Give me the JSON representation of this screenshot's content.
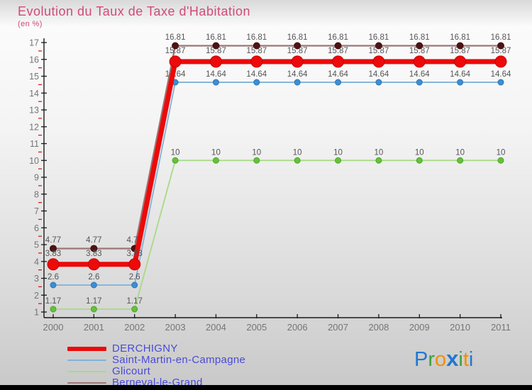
{
  "page": {
    "title": "Evolution du Taux de Taxe d'Habitation",
    "subtitle": "(en %)"
  },
  "chart_data": {
    "type": "line",
    "title": "Evolution du Taux de Taxe d'Habitation",
    "subtitle": "(en %)",
    "xlabel": "",
    "ylabel": "",
    "x": [
      2000,
      2001,
      2002,
      2003,
      2004,
      2005,
      2006,
      2007,
      2008,
      2009,
      2010,
      2011
    ],
    "ylim": [
      1,
      17
    ],
    "y_major_step": 1,
    "y_minor_step": 0.5,
    "grid": false,
    "legend_position": "bottom-left",
    "series": [
      {
        "name": "DERCHIGNY",
        "values": [
          3.83,
          3.83,
          3.83,
          15.87,
          15.87,
          15.87,
          15.87,
          15.87,
          15.87,
          15.87,
          15.87,
          15.87
        ],
        "line_color": "#ec0a0a",
        "marker_color": "#ec0a0a",
        "marker_edge": "#c80000",
        "line_width": 7,
        "marker_radius": 8
      },
      {
        "name": "Saint-Martin-en-Campagne",
        "values": [
          2.6,
          2.6,
          2.6,
          14.64,
          14.64,
          14.64,
          14.64,
          14.64,
          14.64,
          14.64,
          14.64,
          14.64
        ],
        "line_color": "#7fb2da",
        "marker_color": "#3d8ed2",
        "marker_edge": "#2f77b4",
        "line_width": 1.8,
        "marker_radius": 4
      },
      {
        "name": "Glicourt",
        "values": [
          1.17,
          1.17,
          1.17,
          10,
          10,
          10,
          10,
          10,
          10,
          10,
          10,
          10
        ],
        "line_color": "#a8da85",
        "marker_color": "#64c23a",
        "marker_edge": "#4ba428",
        "line_width": 1.8,
        "marker_radius": 4
      },
      {
        "name": "Berneval-le-Grand",
        "values": [
          4.77,
          4.77,
          4.77,
          16.81,
          16.81,
          16.81,
          16.81,
          16.81,
          16.81,
          16.81,
          16.81,
          16.81
        ],
        "line_color": "#9d7676",
        "marker_color": "#4f1212",
        "marker_edge": "#3d0d0d",
        "line_width": 2.2,
        "marker_radius": 4.5
      }
    ],
    "point_label_color": "#555555",
    "axis_color": "#1a1a1a",
    "minor_tick_color": "#cc1111",
    "tick_label_color": "#757575"
  },
  "legend": {
    "items": [
      {
        "label": "DERCHIGNY",
        "color": "#ec0a0a",
        "thickness": 6
      },
      {
        "label": "Saint-Martin-en-Campagne",
        "color": "#7fb2da",
        "thickness": 2
      },
      {
        "label": "Glicourt",
        "color": "#a8da85",
        "thickness": 2
      },
      {
        "label": "Berneval-le-Grand",
        "color": "#9d7676",
        "thickness": 2
      }
    ]
  },
  "logo": {
    "letters": [
      {
        "ch": "P",
        "color": "#1f78d1",
        "big": false
      },
      {
        "ch": "r",
        "color": "#3da23d",
        "big": false
      },
      {
        "ch": "o",
        "color": "#f29000",
        "big": false
      },
      {
        "ch": "x",
        "color": "#1f78d1",
        "big": true
      },
      {
        "ch": "i",
        "color": "#3da23d",
        "big": false
      },
      {
        "ch": "t",
        "color": "#f29000",
        "big": false
      },
      {
        "ch": "i",
        "color": "#1f78d1",
        "big": false
      }
    ]
  }
}
